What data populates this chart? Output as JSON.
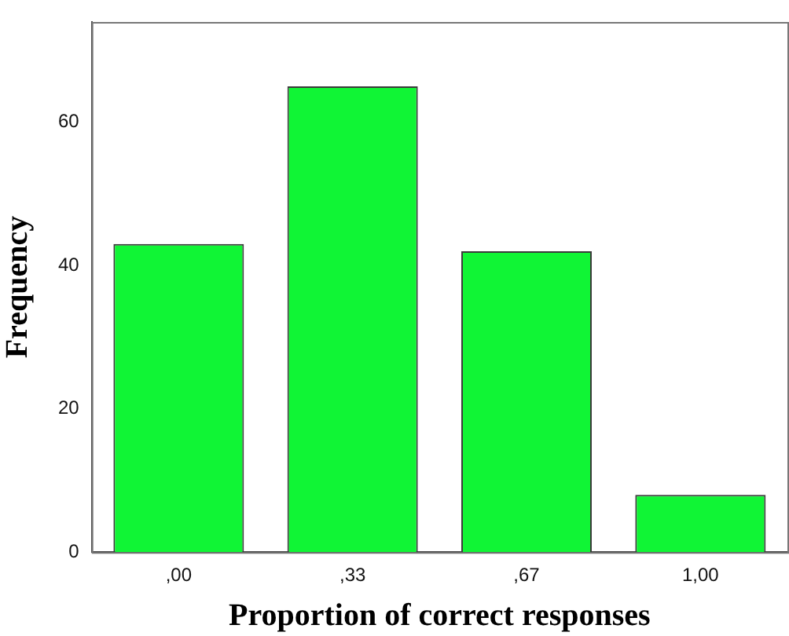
{
  "chart_data": {
    "type": "bar",
    "xlabel": "Proportion of correct responses",
    "ylabel": "Frequency",
    "categories": [
      ",00",
      ",33",
      ",67",
      "1,00"
    ],
    "values": [
      43,
      65,
      42,
      8
    ],
    "color": "#10f535",
    "ylim": [
      0,
      74
    ],
    "yticks": [
      0,
      20,
      40,
      60
    ],
    "grid": false
  }
}
